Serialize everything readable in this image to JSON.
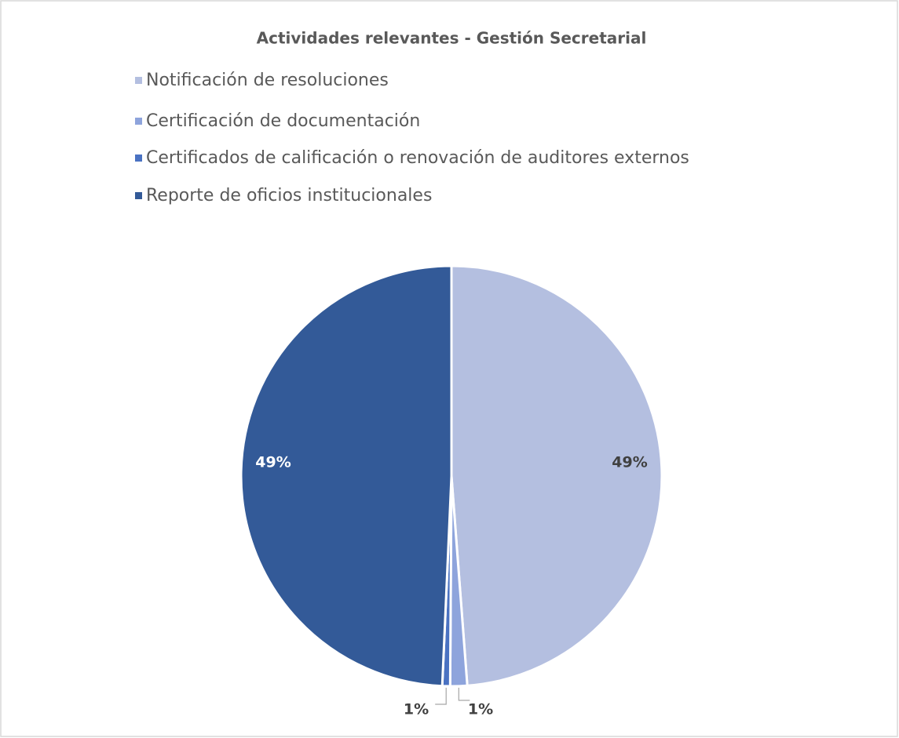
{
  "chart_data": {
    "type": "pie",
    "title": "Actividades relevantes - Gestión Secretarial",
    "categories": [
      "Notificación de resoluciones",
      "Certificación de documentación",
      "Certificados de calificación o renovación de auditores externos",
      "Reporte de oficios institucionales"
    ],
    "values": [
      48.8,
      1.3,
      0.6,
      49.3
    ],
    "value_labels": [
      "49%",
      "1%",
      "1%",
      "49%"
    ],
    "colors": [
      "#b4bfe0",
      "#8ea4dc",
      "#4a72c2",
      "#335a98"
    ],
    "legend": "top"
  }
}
